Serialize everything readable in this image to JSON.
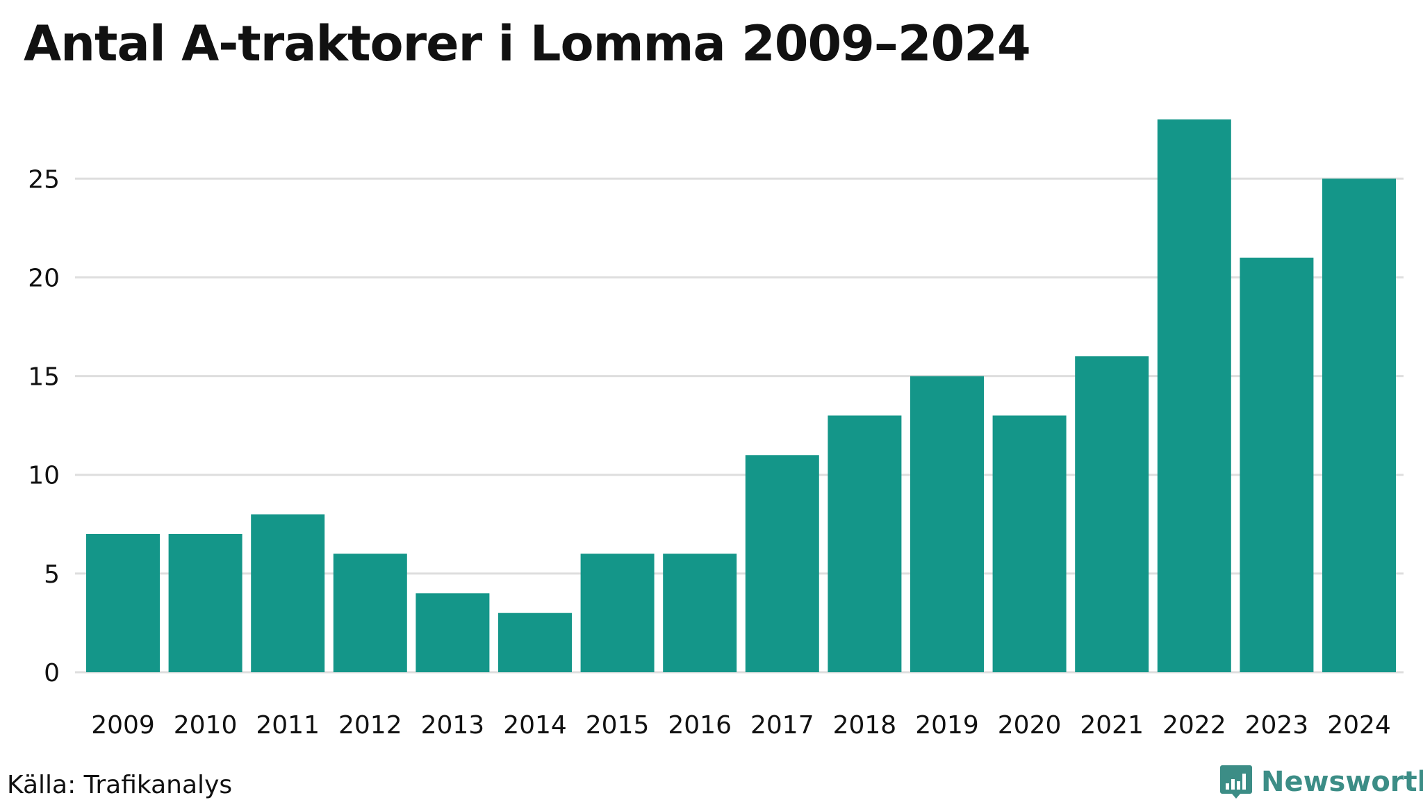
{
  "title": "Antal A-traktorer i Lomma 2009–2024",
  "source": "Källa: Trafikanalys",
  "brand": {
    "name": "Newsworthy",
    "icon": "newsworthy-logo-icon",
    "color": "#3c8d86"
  },
  "colors": {
    "bar": "#149689",
    "grid": "#dedede",
    "text": "#111111"
  },
  "chart_data": {
    "type": "bar",
    "title": "Antal A-traktorer i Lomma 2009–2024",
    "xlabel": "",
    "ylabel": "",
    "categories": [
      "2009",
      "2010",
      "2011",
      "2012",
      "2013",
      "2014",
      "2015",
      "2016",
      "2017",
      "2018",
      "2019",
      "2020",
      "2021",
      "2022",
      "2023",
      "2024"
    ],
    "values": [
      7,
      7,
      8,
      6,
      4,
      3,
      6,
      6,
      11,
      13,
      15,
      13,
      16,
      28,
      21,
      25
    ],
    "ylim": [
      0,
      28
    ],
    "yticks": [
      0,
      5,
      10,
      15,
      20,
      25
    ],
    "grid": true,
    "legend": "none"
  }
}
